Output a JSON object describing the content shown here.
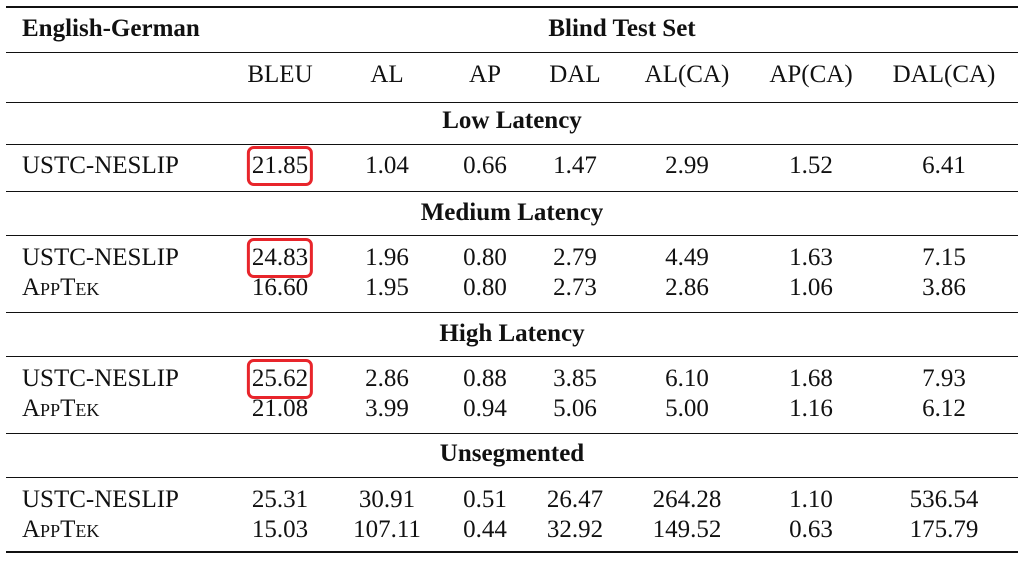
{
  "table": {
    "corner_label": "English-German",
    "group_header": "Blind Test Set",
    "columns": [
      "BLEU",
      "AL",
      "AP",
      "DAL",
      "AL(CA)",
      "AP(CA)",
      "DAL(CA)"
    ],
    "sections": [
      {
        "title": "Low Latency",
        "rows": [
          {
            "system": "USTC-NESLIP",
            "small_caps": false,
            "highlight_bleu": true,
            "values": [
              "21.85",
              "1.04",
              "0.66",
              "1.47",
              "2.99",
              "1.52",
              "6.41"
            ]
          }
        ]
      },
      {
        "title": "Medium Latency",
        "rows": [
          {
            "system": "USTC-NESLIP",
            "small_caps": false,
            "highlight_bleu": true,
            "values": [
              "24.83",
              "1.96",
              "0.80",
              "2.79",
              "4.49",
              "1.63",
              "7.15"
            ]
          },
          {
            "system": "AppTek",
            "small_caps": true,
            "highlight_bleu": false,
            "values": [
              "16.60",
              "1.95",
              "0.80",
              "2.73",
              "2.86",
              "1.06",
              "3.86"
            ]
          }
        ]
      },
      {
        "title": "High Latency",
        "rows": [
          {
            "system": "USTC-NESLIP",
            "small_caps": false,
            "highlight_bleu": true,
            "values": [
              "25.62",
              "2.86",
              "0.88",
              "3.85",
              "6.10",
              "1.68",
              "7.93"
            ]
          },
          {
            "system": "AppTek",
            "small_caps": true,
            "highlight_bleu": false,
            "values": [
              "21.08",
              "3.99",
              "0.94",
              "5.06",
              "5.00",
              "1.16",
              "6.12"
            ]
          }
        ]
      },
      {
        "title": "Unsegmented",
        "rows": [
          {
            "system": "USTC-NESLIP",
            "small_caps": false,
            "highlight_bleu": false,
            "values": [
              "25.31",
              "30.91",
              "0.51",
              "26.47",
              "264.28",
              "1.10",
              "536.54"
            ]
          },
          {
            "system": "AppTek",
            "small_caps": true,
            "highlight_bleu": false,
            "values": [
              "15.03",
              "107.11",
              "0.44",
              "32.92",
              "149.52",
              "0.63",
              "175.79"
            ]
          }
        ]
      }
    ],
    "highlight_color": "#e8252b"
  }
}
